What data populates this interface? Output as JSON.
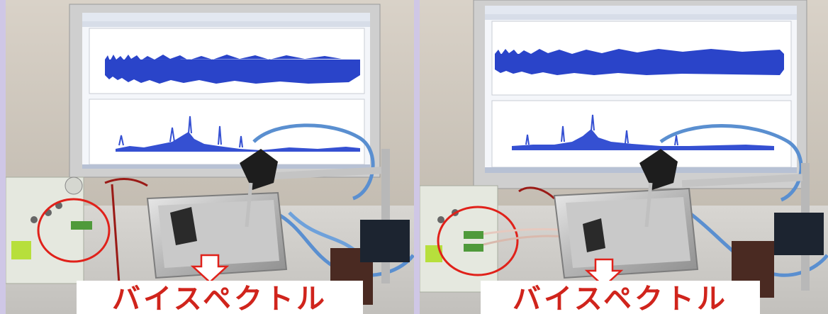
{
  "photos": [
    {
      "caption": "バイスペクトル"
    },
    {
      "caption": "バイスペクトル"
    }
  ]
}
